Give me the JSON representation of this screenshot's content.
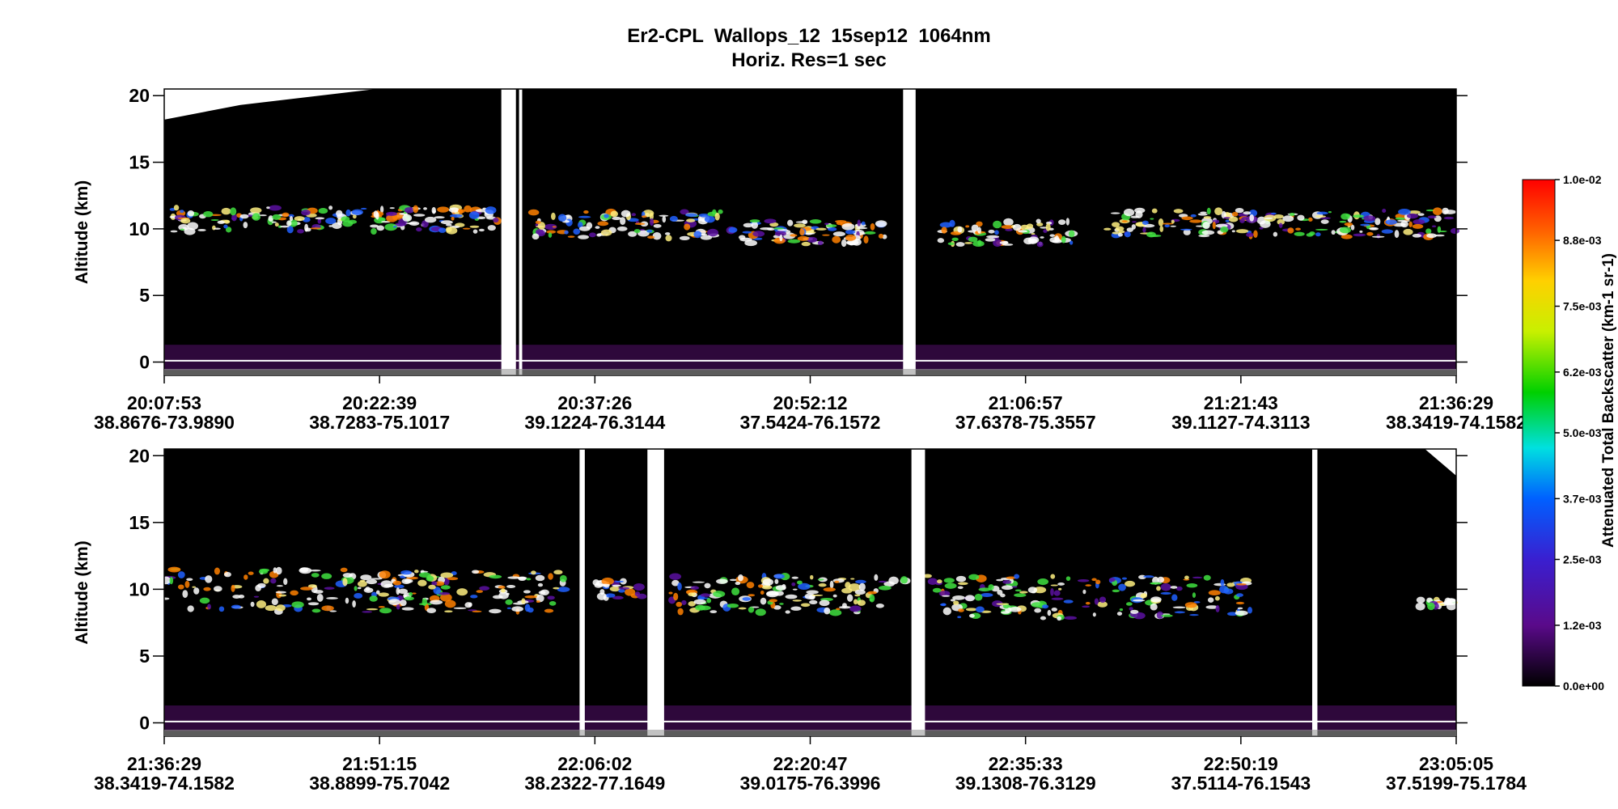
{
  "chart_data": {
    "type": "heatmap",
    "title": "Er2-CPL  Wallops_12  15sep12  1064nm",
    "subtitle": "Horiz. Res=1 sec",
    "panels": [
      {
        "ylabel": "Altitude (km)",
        "ylim": [
          -1,
          20.5
        ],
        "yticks": [
          0,
          5,
          10,
          15,
          20
        ],
        "xticks": [
          {
            "time": "20:07:53",
            "location": "38.8676-73.9890"
          },
          {
            "time": "20:22:39",
            "location": "38.7283-75.1017"
          },
          {
            "time": "20:37:26",
            "location": "39.1224-76.3144"
          },
          {
            "time": "20:52:12",
            "location": "37.5424-76.1572"
          },
          {
            "time": "21:06:57",
            "location": "37.6378-75.3557"
          },
          {
            "time": "21:21:43",
            "location": "39.1127-74.3113"
          },
          {
            "time": "21:36:29",
            "location": "38.3419-74.1582"
          }
        ]
      },
      {
        "ylabel": "Altitude (km)",
        "ylim": [
          -1,
          20.5
        ],
        "yticks": [
          0,
          5,
          10,
          15,
          20
        ],
        "xticks": [
          {
            "time": "21:36:29",
            "location": "38.3419-74.1582"
          },
          {
            "time": "21:51:15",
            "location": "38.8899-75.7042"
          },
          {
            "time": "22:06:02",
            "location": "38.2322-77.1649"
          },
          {
            "time": "22:20:47",
            "location": "39.0175-76.3996"
          },
          {
            "time": "22:35:33",
            "location": "39.1308-76.3129"
          },
          {
            "time": "22:50:19",
            "location": "37.5114-76.1543"
          },
          {
            "time": "23:05:05",
            "location": "37.5199-75.1784"
          }
        ]
      }
    ],
    "colorbar": {
      "label": "Attenuated Total Backscatter (km-1 sr-1)",
      "lim": [
        0,
        0.01
      ],
      "ticks": [
        {
          "value": 0,
          "label": "0.0e+00"
        },
        {
          "value": 0.0012,
          "label": "1.2e-03"
        },
        {
          "value": 0.0025,
          "label": "2.5e-03"
        },
        {
          "value": 0.0037,
          "label": "3.7e-03"
        },
        {
          "value": 0.005,
          "label": "5.0e-03"
        },
        {
          "value": 0.0062,
          "label": "6.2e-03"
        },
        {
          "value": 0.0075,
          "label": "7.5e-03"
        },
        {
          "value": 0.0088,
          "label": "8.8e-03"
        },
        {
          "value": 0.01,
          "label": "1.0e-02"
        }
      ]
    }
  }
}
